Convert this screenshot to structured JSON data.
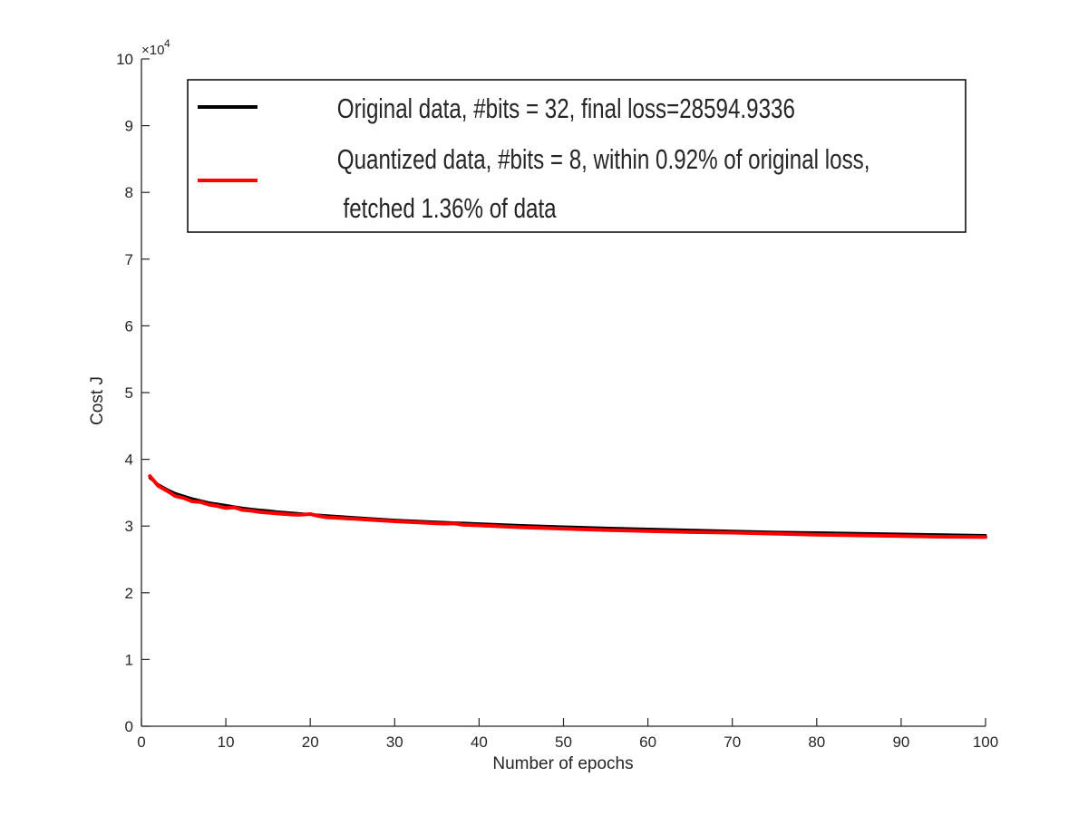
{
  "chart_data": {
    "type": "line",
    "xlabel": "Number of epochs",
    "ylabel": "Cost J",
    "xlim": [
      0,
      100
    ],
    "ylim": [
      0,
      10
    ],
    "xticks": [
      0,
      10,
      20,
      30,
      40,
      50,
      60,
      70,
      80,
      90,
      100
    ],
    "yticks": [
      0,
      1,
      2,
      3,
      4,
      5,
      6,
      7,
      8,
      9,
      10
    ],
    "y_exponent": {
      "base": "×10",
      "power": "4"
    },
    "grid": false,
    "legend_position": "top",
    "legend": [
      {
        "lines": [
          "Original data, #bits = 32, final loss=28594.9336"
        ],
        "color": "#000000"
      },
      {
        "lines": [
          "Quantized data, #bits = 8, within 0.92% of original loss,",
          " fetched 1.36% of data"
        ],
        "color": "#ff0000"
      }
    ],
    "series": [
      {
        "name": "Original data, #bits = 32, final loss=28594.9336",
        "color": "#000000",
        "x": [
          1,
          2,
          3,
          4,
          5,
          6,
          7,
          8,
          9,
          10,
          11,
          12,
          13,
          14,
          15,
          16,
          17,
          18,
          19,
          20,
          22,
          25,
          30,
          35,
          40,
          45,
          50,
          55,
          60,
          65,
          70,
          75,
          80,
          85,
          90,
          95,
          100
        ],
        "y": [
          3.72,
          3.62,
          3.55,
          3.49,
          3.45,
          3.41,
          3.38,
          3.35,
          3.33,
          3.31,
          3.29,
          3.27,
          3.255,
          3.24,
          3.23,
          3.215,
          3.205,
          3.195,
          3.185,
          3.175,
          3.155,
          3.13,
          3.09,
          3.06,
          3.035,
          3.01,
          2.99,
          2.97,
          2.955,
          2.94,
          2.925,
          2.91,
          2.9,
          2.89,
          2.88,
          2.87,
          2.86
        ]
      },
      {
        "name": "Quantized data, #bits = 8, within 0.92% of original loss, fetched 1.36% of data",
        "color": "#ff0000",
        "x": [
          1,
          2,
          3,
          4,
          5,
          6,
          7,
          8,
          9,
          10,
          11,
          12,
          13,
          14,
          15,
          16,
          17,
          18,
          19,
          20,
          21,
          22,
          25,
          30,
          35,
          36,
          37,
          38,
          40,
          45,
          50,
          55,
          60,
          65,
          70,
          75,
          80,
          85,
          90,
          95,
          100
        ],
        "y": [
          3.75,
          3.6,
          3.53,
          3.45,
          3.42,
          3.37,
          3.36,
          3.32,
          3.3,
          3.27,
          3.28,
          3.24,
          3.23,
          3.21,
          3.2,
          3.19,
          3.18,
          3.17,
          3.17,
          3.18,
          3.15,
          3.13,
          3.11,
          3.07,
          3.04,
          3.035,
          3.04,
          3.02,
          3.01,
          2.98,
          2.96,
          2.94,
          2.925,
          2.91,
          2.9,
          2.885,
          2.87,
          2.86,
          2.85,
          2.84,
          2.835
        ]
      }
    ]
  }
}
